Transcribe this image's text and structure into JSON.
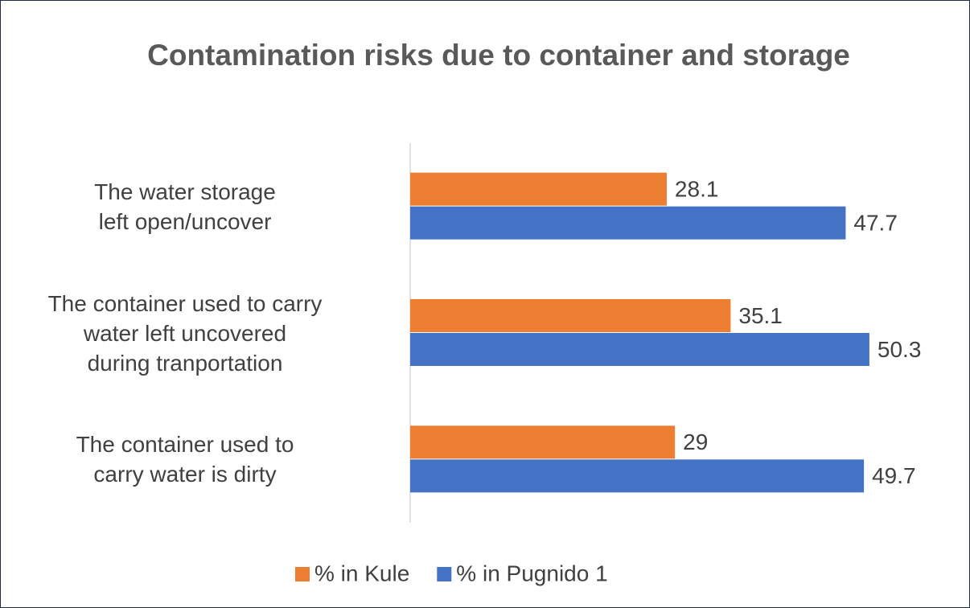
{
  "chart_data": {
    "type": "bar",
    "orientation": "horizontal",
    "title": "Contamination risks due to container and storage",
    "categories": [
      "The water storage\nleft open/uncover",
      "The container used to carry\nwater left uncovered\nduring tranportation",
      "The container used to\ncarry water is dirty"
    ],
    "series": [
      {
        "name": "% in Kule",
        "color": "#ed7d31",
        "values": [
          28.1,
          35.1,
          29
        ]
      },
      {
        "name": "% in Pugnido 1",
        "color": "#4472c4",
        "values": [
          47.7,
          50.3,
          49.7
        ]
      }
    ],
    "xlim": [
      0,
      60
    ],
    "grid": false,
    "legend": "bottom"
  }
}
